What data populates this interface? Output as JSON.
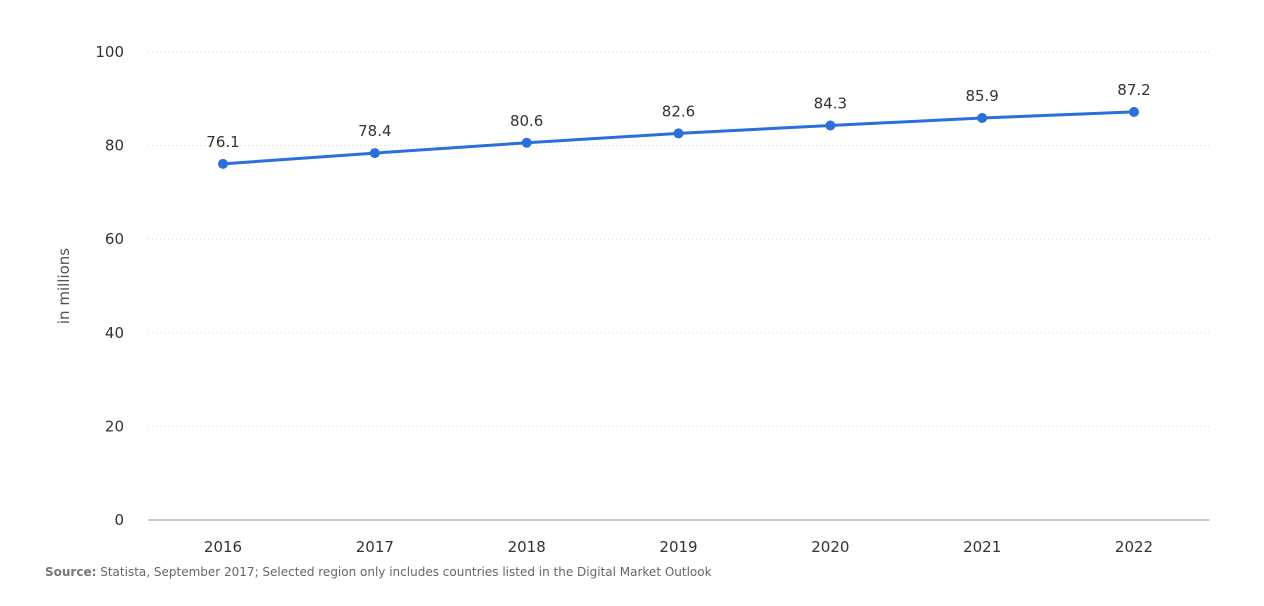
{
  "colors": {
    "line": "#2a6fdb",
    "grid": "#d8d8d8",
    "axis": "#bcbcbc",
    "text": "#333333"
  },
  "chart_data": {
    "type": "line",
    "title": "",
    "xlabel": "",
    "ylabel": "in millions",
    "categories": [
      "2016",
      "2017",
      "2018",
      "2019",
      "2020",
      "2021",
      "2022"
    ],
    "series": [
      {
        "name": "in millions",
        "values": [
          76.1,
          78.4,
          80.6,
          82.6,
          84.3,
          85.9,
          87.2
        ],
        "labels": [
          "76.1",
          "78.4",
          "80.6",
          "82.6",
          "84.3",
          "85.9",
          "87.2"
        ]
      }
    ],
    "ylim": [
      0,
      100
    ],
    "yticks": [
      "0",
      "20",
      "40",
      "60",
      "80",
      "100"
    ],
    "grid": true,
    "legend": "none"
  },
  "source": {
    "label": "Source:",
    "text": "Statista, September 2017; Selected region only includes countries listed in the Digital Market Outlook"
  }
}
